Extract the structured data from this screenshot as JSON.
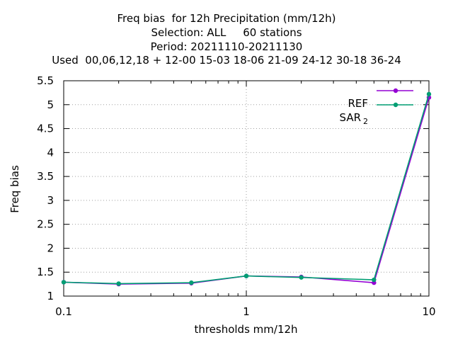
{
  "chart_data": {
    "type": "line",
    "title": [
      "Freq bias  for 12h Precipitation (mm/12h)",
      "Selection: ALL     60 stations",
      "Period: 20211110-20211130",
      "Used  00,06,12,18 + 12-00 15-03 18-06 21-09 24-12 30-18 36-24"
    ],
    "xlabel": "thresholds mm/12h",
    "ylabel": "Freq bias",
    "xscale": "log",
    "xlim": [
      0.1,
      10
    ],
    "ylim": [
      1,
      5.5
    ],
    "xticks": [
      {
        "v": 0.1,
        "label": "0.1"
      },
      {
        "v": 1,
        "label": "1"
      },
      {
        "v": 10,
        "label": "10"
      }
    ],
    "yticks": [
      "1",
      "1.5",
      "2",
      "2.5",
      "3",
      "3.5",
      "4",
      "4.5",
      "5",
      "5.5"
    ],
    "grid": true,
    "legend_position": "top-right",
    "x": [
      0.1,
      0.2,
      0.5,
      1,
      2,
      5,
      10
    ],
    "series": [
      {
        "name": "REF",
        "name_sub": "",
        "color": "#9400d3",
        "values": [
          1.29,
          1.25,
          1.27,
          1.42,
          1.4,
          1.28,
          5.15
        ]
      },
      {
        "name": "SAR",
        "name_sub": "2",
        "color": "#009e73",
        "values": [
          1.29,
          1.26,
          1.28,
          1.42,
          1.39,
          1.34,
          5.22
        ]
      }
    ]
  }
}
